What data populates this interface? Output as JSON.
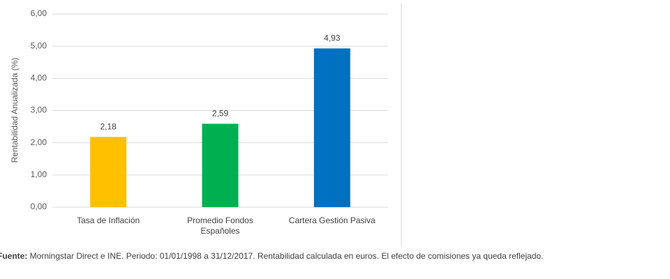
{
  "chart_data": {
    "type": "bar",
    "y_label": "Rentabilidad Anualizada (%)",
    "categories": [
      "Tasa de Inflación",
      "Promedio Fondos Españoles",
      "Cartera Gestión Pasiva"
    ],
    "values": [
      2.18,
      2.59,
      4.93
    ],
    "value_labels": [
      "2,18",
      "2,59",
      "4,93"
    ],
    "colors": [
      "#ffc000",
      "#00b050",
      "#0070c0"
    ],
    "ylim": [
      0,
      6
    ],
    "yticks": [
      {
        "value": 0,
        "label": "0,00"
      },
      {
        "value": 1,
        "label": "1,00"
      },
      {
        "value": 2,
        "label": "2,00"
      },
      {
        "value": 3,
        "label": "3,00"
      },
      {
        "value": 4,
        "label": "4,00"
      },
      {
        "value": 5,
        "label": "5,00"
      },
      {
        "value": 6,
        "label": "6,00"
      }
    ],
    "grid": true
  },
  "source_label": "Fuente:",
  "source_text": " Morningstar Direct e INE. Periodo: 01/01/1998 a 31/12/2017. Rentabilidad calculada en euros. El efecto de comisiones ya queda reflejado."
}
